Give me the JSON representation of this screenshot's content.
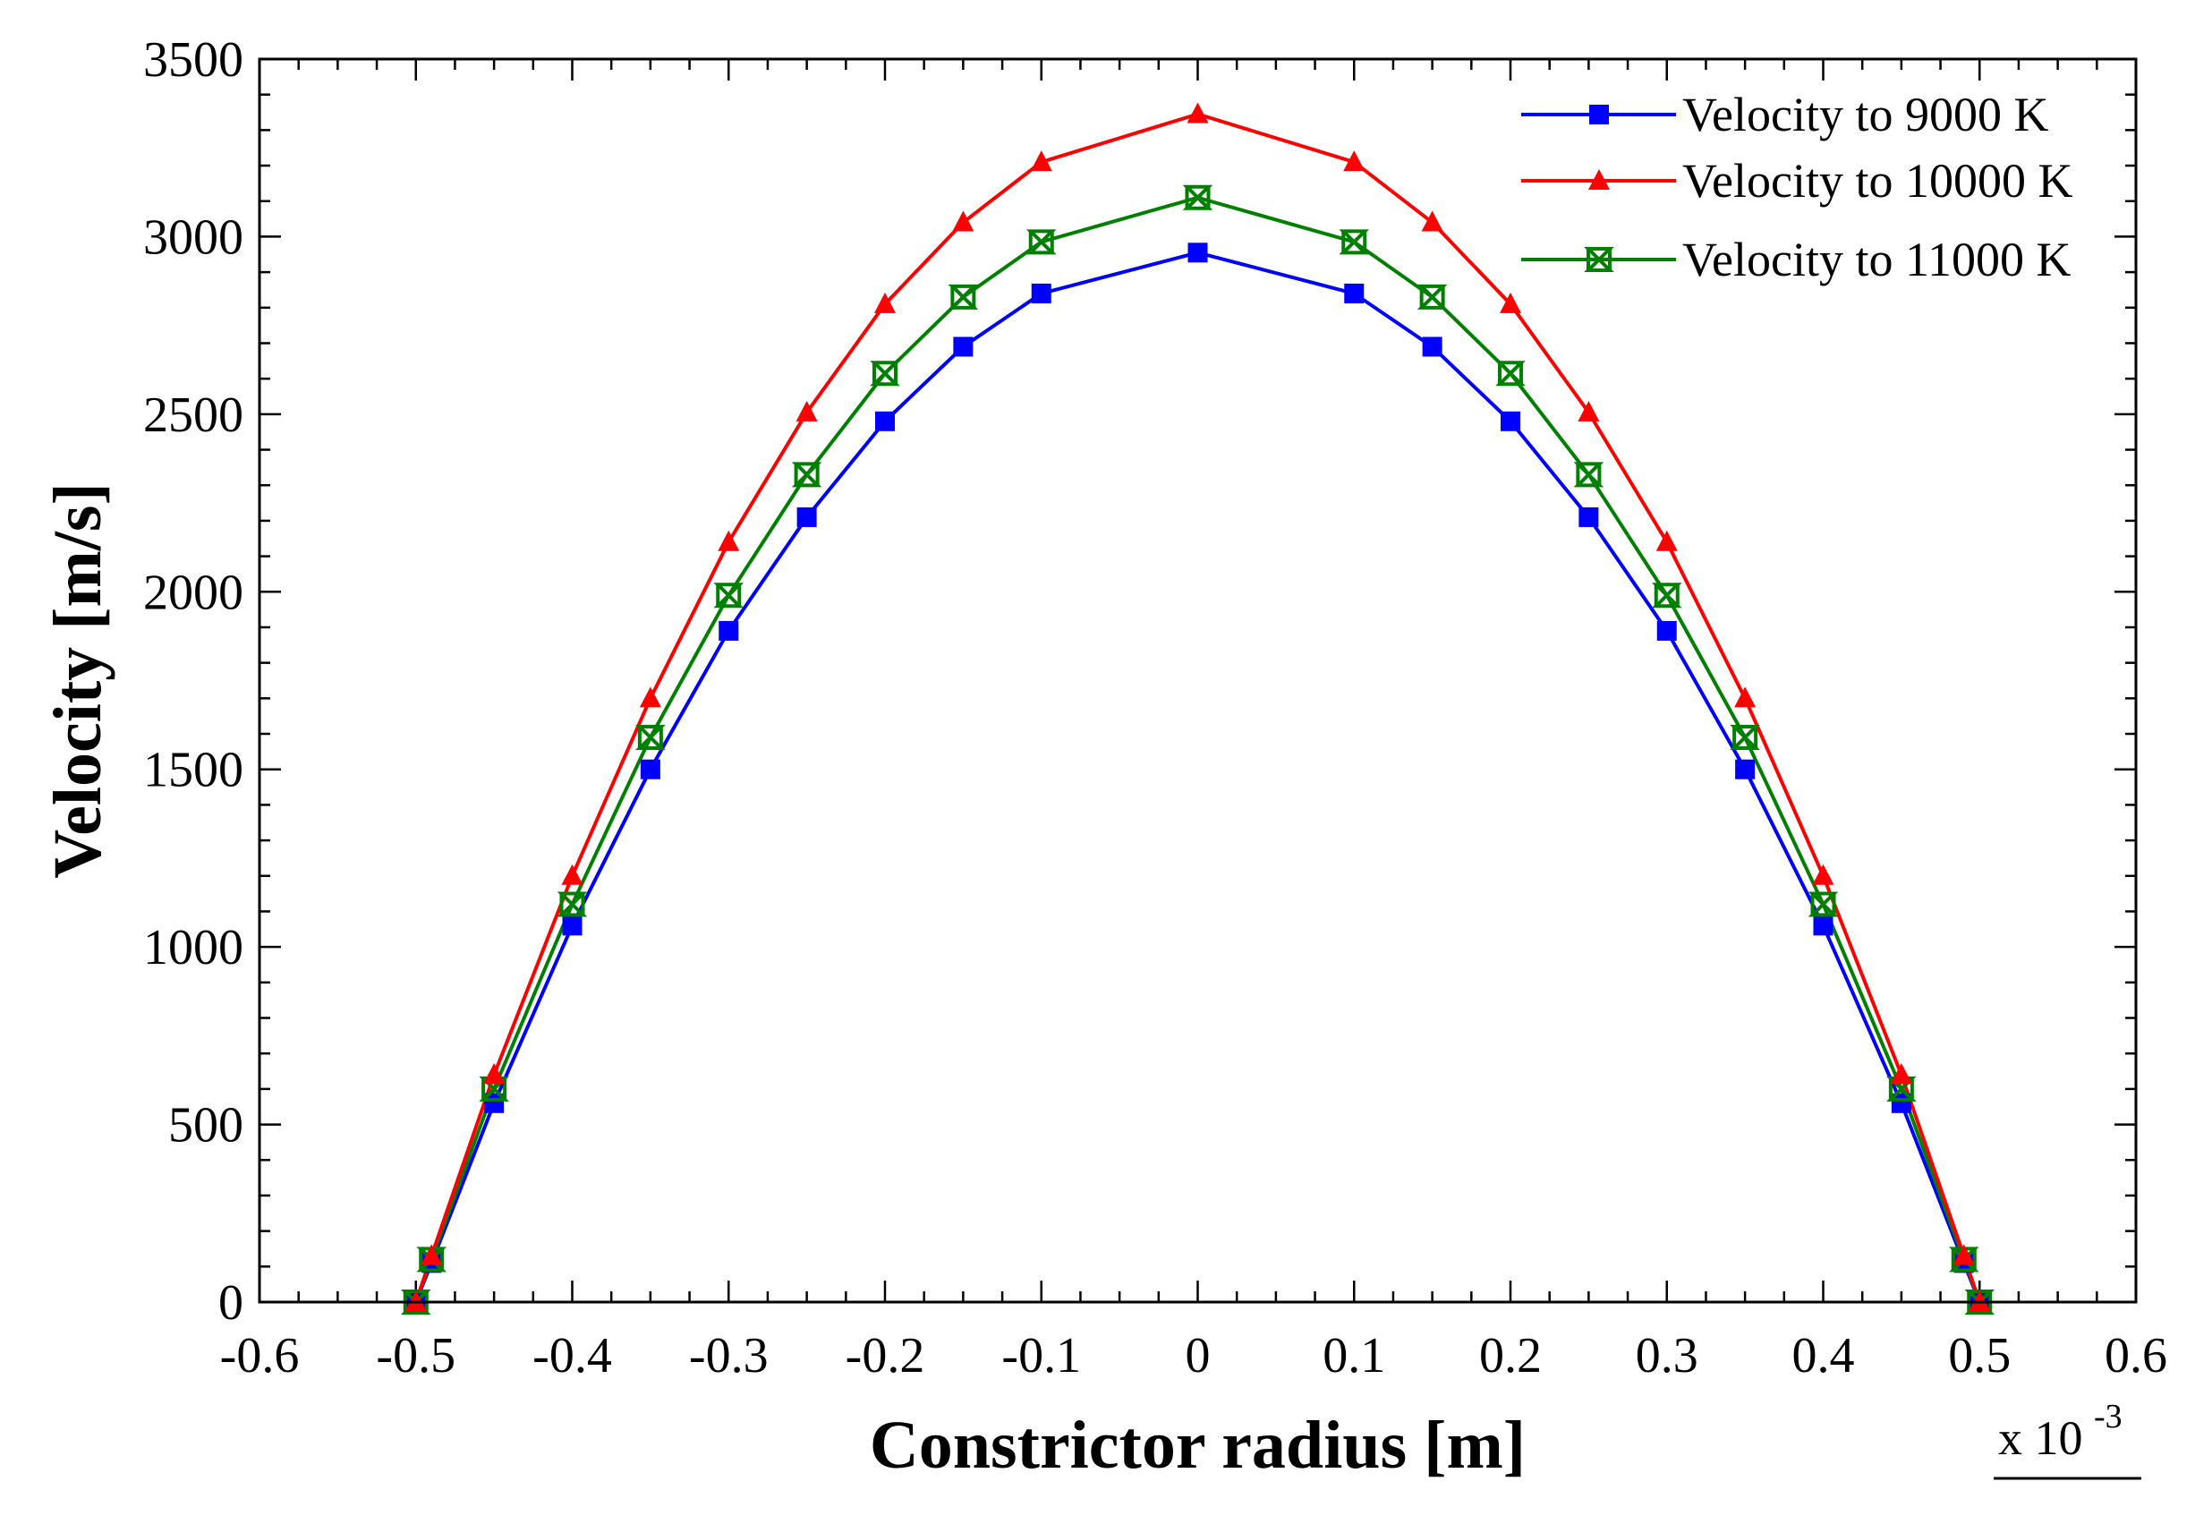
{
  "chart_data": {
    "type": "line",
    "title": "",
    "xlabel": "Constrictor radius [m]",
    "ylabel": "Velocity [m/s]",
    "x_multiplier": {
      "base": "x 10",
      "exponent": "-3"
    },
    "xlim": [
      -0.6,
      0.6
    ],
    "ylim": [
      0,
      3500
    ],
    "xticks": [
      -0.6,
      -0.5,
      -0.4,
      -0.3,
      -0.2,
      -0.1,
      0,
      0.1,
      0.2,
      0.3,
      0.4,
      0.5,
      0.6
    ],
    "xtick_labels": [
      "-0.6",
      "-0.5",
      "-0.4",
      "-0.3",
      "-0.2",
      "-0.1",
      "0",
      "0.1",
      "0.2",
      "0.3",
      "0.4",
      "0.5",
      "0.6"
    ],
    "yticks": [
      0,
      500,
      1000,
      1500,
      2000,
      2500,
      3000,
      3500
    ],
    "ytick_labels": [
      "0",
      "500",
      "1000",
      "1500",
      "2000",
      "2500",
      "3000",
      "3500"
    ],
    "legend_position": "top-right",
    "grid": false,
    "x": [
      -0.5,
      -0.49,
      -0.45,
      -0.4,
      -0.35,
      -0.3,
      -0.25,
      -0.2,
      -0.15,
      -0.1,
      0,
      0.1,
      0.15,
      0.2,
      0.25,
      0.3,
      0.35,
      0.4,
      0.45,
      0.49,
      0.5
    ],
    "series": [
      {
        "name": "Velocity to 9000 K",
        "color": "#0000ff",
        "marker": "square",
        "values": [
          0,
          110,
          560,
          1060,
          1500,
          1890,
          2210,
          2480,
          2690,
          2840,
          2955,
          2840,
          2690,
          2480,
          2210,
          1890,
          1500,
          1060,
          560,
          110,
          0
        ]
      },
      {
        "name": "Velocity to 10000 K",
        "color": "#ff0000",
        "marker": "triangle",
        "values": [
          0,
          130,
          640,
          1200,
          1700,
          2140,
          2505,
          2810,
          3040,
          3210,
          3345,
          3210,
          3040,
          2810,
          2505,
          2140,
          1700,
          1200,
          640,
          130,
          0
        ]
      },
      {
        "name": "Velocity to 11000 K",
        "color": "#008000",
        "marker": "bowtie",
        "values": [
          0,
          120,
          600,
          1120,
          1590,
          1990,
          2330,
          2615,
          2830,
          2985,
          3110,
          2985,
          2830,
          2615,
          2330,
          1990,
          1590,
          1120,
          600,
          120,
          0
        ]
      }
    ]
  }
}
